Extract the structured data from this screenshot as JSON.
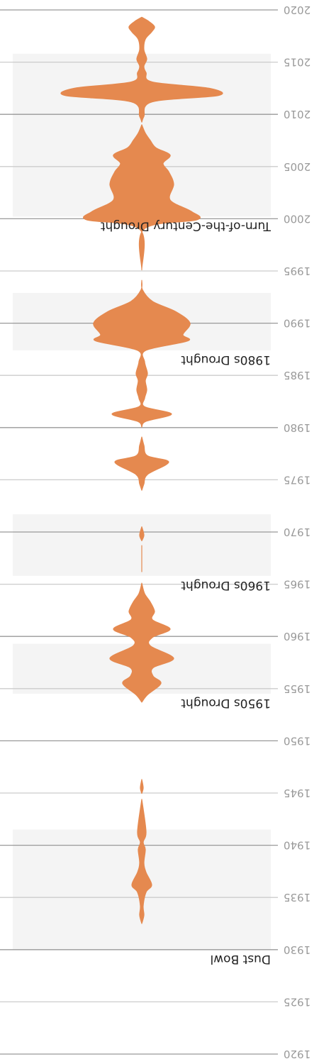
{
  "chart_data": {
    "type": "violin",
    "orientation": "vertical",
    "rendering": "rotated-180",
    "axis": {
      "range": [
        1920,
        2020
      ],
      "major_ticks": [
        1920,
        1930,
        1940,
        1950,
        1960,
        1970,
        1980,
        1990,
        2000,
        2010,
        2020
      ],
      "minor_ticks": [
        1925,
        1935,
        1945,
        1955,
        1965,
        1975,
        1985,
        1995,
        2005,
        2015
      ],
      "tick_labels": [
        "1920",
        "1925",
        "1930",
        "1935",
        "1940",
        "1945",
        "1950",
        "1955",
        "1960",
        "1965",
        "1970",
        "1975",
        "1980",
        "1985",
        "1990",
        "1995",
        "2000",
        "2005",
        "2010",
        "2015",
        "2020"
      ]
    },
    "periods": [
      {
        "label": "Dust Bowl",
        "start": 1930,
        "end": 1941.5
      },
      {
        "label": "1950s Drought",
        "start": 1954.5,
        "end": 1959.3
      },
      {
        "label": "1960s Drought",
        "start": 1965.8,
        "end": 1971.7
      },
      {
        "label": "1980s Drought",
        "start": 1987.4,
        "end": 1992.9
      },
      {
        "label": "Turn-of-the-Century Drought",
        "start": 2000.2,
        "end": 2015.8
      }
    ],
    "density": {
      "year": [
        1932.5,
        1933.3,
        1934.2,
        1935.5,
        1936.2,
        1937.4,
        1938.3,
        1939.6,
        1940.3,
        1941.3,
        1944.4,
        1945.5,
        1946.3,
        1953.7,
        1954.4,
        1955.5,
        1956.2,
        1957.0,
        1957.9,
        1959.1,
        1959.9,
        1960.7,
        1961.6,
        1962.4,
        1963.3,
        1964.1,
        1965.1,
        1966.2,
        1968.7,
        1969.7,
        1970.5,
        1974.0,
        1974.6,
        1975.5,
        1976.7,
        1977.3,
        1978.3,
        1979.1,
        1980.6,
        1981.3,
        1982.0,
        1982.8,
        1983.6,
        1984.5,
        1985.2,
        1986.3,
        1987.4,
        1988.3,
        1988.9,
        1990.0,
        1991.1,
        1992.1,
        1993.2,
        1994.1,
        1995.1,
        1999.0,
        1999.9,
        2000.7,
        2001.8,
        2003.3,
        2004.5,
        2005.3,
        2006.1,
        2006.8,
        2007.5,
        2008.2,
        2009.0,
        2009.8,
        2011.2,
        2011.8,
        2012.5,
        2013.1,
        2014.0,
        2014.6,
        2015.3,
        2016.2,
        2017.2,
        2017.9,
        2018.4,
        2018.9,
        2019.3
      ],
      "half_width": [
        0,
        3,
        2,
        6,
        14,
        6,
        3,
        5,
        2,
        6,
        0,
        2,
        0,
        0,
        8,
        27,
        16,
        16,
        45,
        12,
        15,
        40,
        15,
        18,
        12,
        4,
        0,
        0,
        0,
        3,
        0,
        0,
        3,
        8,
        38,
        8,
        3,
        0,
        6,
        42,
        4,
        4,
        7,
        5,
        8,
        4,
        6,
        65,
        58,
        68,
        48,
        15,
        1,
        0,
        0,
        3,
        78,
        70,
        40,
        45,
        38,
        30,
        40,
        20,
        12,
        5,
        0,
        3,
        15,
        108,
        95,
        15,
        6,
        3,
        7,
        3,
        5,
        14,
        18,
        10,
        0
      ]
    },
    "colors": {
      "violin": "#e5894f",
      "period_band": "#f4f4f4",
      "major_grid": "#999999",
      "minor_grid": "#cccccc"
    }
  }
}
